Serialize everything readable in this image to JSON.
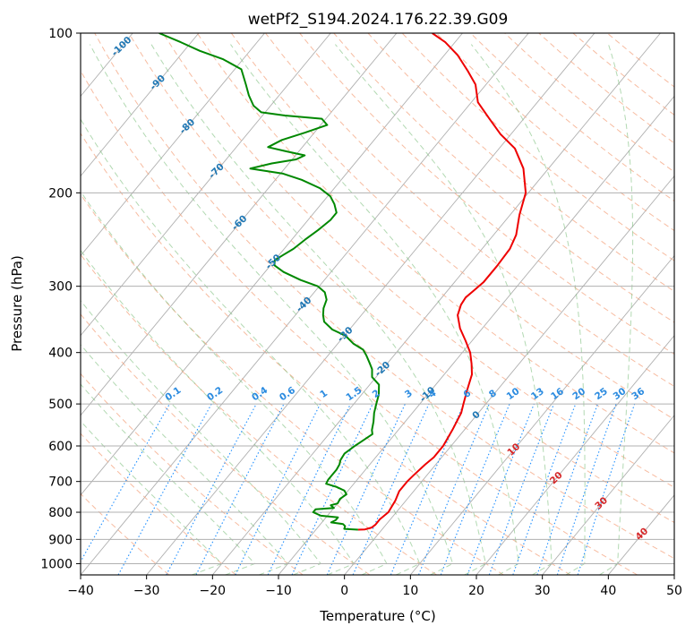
{
  "chart_data": {
    "type": "line",
    "title": "wetPf2_S194.2024.176.22.39.G09",
    "xlabel": "Temperature (°C)",
    "ylabel": "Pressure (hPa)",
    "xlim": [
      -40,
      50
    ],
    "ylim": [
      1050,
      100
    ],
    "y_scale": "log",
    "x_ticks": [
      "−40",
      "−30",
      "−20",
      "−10",
      "0",
      "10",
      "20",
      "30",
      "40",
      "50"
    ],
    "y_ticks": [
      "100",
      "200",
      "300",
      "400",
      "500",
      "600",
      "700",
      "800",
      "900",
      "1000"
    ],
    "grid": true,
    "skew_t": true,
    "series": [
      {
        "name": "",
        "color": "#ee0000",
        "points": [
          [
            -3.6,
            863
          ],
          [
            -2.6,
            862
          ],
          [
            -1.8,
            855
          ],
          [
            -1.6,
            845
          ],
          [
            -1.6,
            825
          ],
          [
            -1.2,
            800
          ],
          [
            -1.6,
            760
          ],
          [
            -2.2,
            730
          ],
          [
            -2.2,
            700
          ],
          [
            -2.0,
            680
          ],
          [
            -1.6,
            650
          ],
          [
            -1.2,
            630
          ],
          [
            -1.2,
            600
          ],
          [
            -1.8,
            560
          ],
          [
            -2.6,
            520
          ],
          [
            -3.4,
            500
          ],
          [
            -4.6,
            470
          ],
          [
            -5.8,
            440
          ],
          [
            -7.2,
            420
          ],
          [
            -8.8,
            400
          ],
          [
            -11.0,
            380
          ],
          [
            -13.4,
            360
          ],
          [
            -15.4,
            340
          ],
          [
            -16.2,
            325
          ],
          [
            -16.4,
            315
          ],
          [
            -16.0,
            305
          ],
          [
            -15.6,
            295
          ],
          [
            -15.6,
            275
          ],
          [
            -15.8,
            255
          ],
          [
            -16.6,
            240
          ],
          [
            -18.6,
            220
          ],
          [
            -20.4,
            200
          ],
          [
            -23.8,
            180
          ],
          [
            -27.6,
            165
          ],
          [
            -31.6,
            155
          ],
          [
            -35.2,
            145
          ],
          [
            -39.0,
            135
          ],
          [
            -41.6,
            125
          ],
          [
            -44.4,
            118
          ],
          [
            -48.0,
            110
          ],
          [
            -51.5,
            104
          ],
          [
            -54.6,
            100
          ]
        ]
      },
      {
        "name": "",
        "color": "#008800",
        "points": [
          [
            -3.6,
            863
          ],
          [
            -5.8,
            860
          ],
          [
            -6.0,
            850
          ],
          [
            -6.6,
            842
          ],
          [
            -8.6,
            836
          ],
          [
            -8.2,
            828
          ],
          [
            -8.2,
            818
          ],
          [
            -11.0,
            812
          ],
          [
            -12.6,
            800
          ],
          [
            -12.6,
            790
          ],
          [
            -10.0,
            785
          ],
          [
            -10.8,
            776
          ],
          [
            -10.0,
            770
          ],
          [
            -10.2,
            755
          ],
          [
            -9.8,
            740
          ],
          [
            -10.6,
            728
          ],
          [
            -12.2,
            717
          ],
          [
            -14.2,
            707
          ],
          [
            -14.4,
            695
          ],
          [
            -14.4,
            680
          ],
          [
            -14.4,
            665
          ],
          [
            -14.6,
            650
          ],
          [
            -15.0,
            638
          ],
          [
            -15.2,
            620
          ],
          [
            -14.6,
            600
          ],
          [
            -14.2,
            590
          ],
          [
            -13.4,
            570
          ],
          [
            -14.0,
            560
          ],
          [
            -14.8,
            540
          ],
          [
            -15.8,
            520
          ],
          [
            -16.6,
            500
          ],
          [
            -17.4,
            480
          ],
          [
            -18.6,
            460
          ],
          [
            -20.6,
            445
          ],
          [
            -21.6,
            430
          ],
          [
            -22.6,
            420
          ],
          [
            -24.2,
            405
          ],
          [
            -25.4,
            395
          ],
          [
            -27.6,
            385
          ],
          [
            -29.8,
            372
          ],
          [
            -32.6,
            362
          ],
          [
            -34.8,
            350
          ],
          [
            -35.8,
            340
          ],
          [
            -36.6,
            330
          ],
          [
            -37.2,
            318
          ],
          [
            -38.4,
            308
          ],
          [
            -40.2,
            300
          ],
          [
            -43.6,
            292
          ],
          [
            -47.2,
            282
          ],
          [
            -49.4,
            274
          ],
          [
            -50.0,
            268
          ],
          [
            -49.4,
            262
          ],
          [
            -48.6,
            255
          ],
          [
            -48.0,
            245
          ],
          [
            -47.2,
            235
          ],
          [
            -46.6,
            225
          ],
          [
            -46.6,
            218
          ],
          [
            -48.0,
            210
          ],
          [
            -49.6,
            203
          ],
          [
            -52.2,
            196
          ],
          [
            -56.0,
            189
          ],
          [
            -59.6,
            184
          ],
          [
            -65.2,
            180
          ],
          [
            -62.6,
            176
          ],
          [
            -59.4,
            173
          ],
          [
            -58.6,
            170
          ],
          [
            -62.0,
            167
          ],
          [
            -65.2,
            164
          ],
          [
            -64.0,
            159
          ],
          [
            -61.4,
            154
          ],
          [
            -59.0,
            149
          ],
          [
            -60.6,
            145
          ],
          [
            -66.6,
            143
          ],
          [
            -70.6,
            141
          ],
          [
            -72.6,
            137
          ],
          [
            -74.6,
            131
          ],
          [
            -76.4,
            125
          ],
          [
            -79.0,
            117
          ],
          [
            -83.0,
            112
          ],
          [
            -87.6,
            108
          ],
          [
            -91.6,
            104
          ],
          [
            -96.0,
            100
          ]
        ]
      }
    ],
    "isotherm_labels": [
      "-100",
      "-90",
      "-80",
      "-70",
      "-60",
      "-50",
      "-40",
      "-30",
      "-20",
      "-10",
      "0",
      "10",
      "20",
      "30",
      "40"
    ],
    "mixing_ratio_labels": [
      "0.1",
      "0.2",
      "0.4",
      "0.6",
      "1",
      "1.5",
      "2",
      "3",
      "4",
      "6",
      "8",
      "10",
      "13",
      "16",
      "20",
      "25",
      "30",
      "36"
    ],
    "colors": {
      "temperature": "#ee0000",
      "dewpoint": "#008800",
      "isotherm_label": "#1f77b4",
      "isotherm_label_zero": "#808080",
      "mixing_ratio": "#1f8fff",
      "dry_adiabat": "#f4a582",
      "moist_adiabat": "#7fbf7f",
      "grid": "#b0b0b0"
    }
  }
}
